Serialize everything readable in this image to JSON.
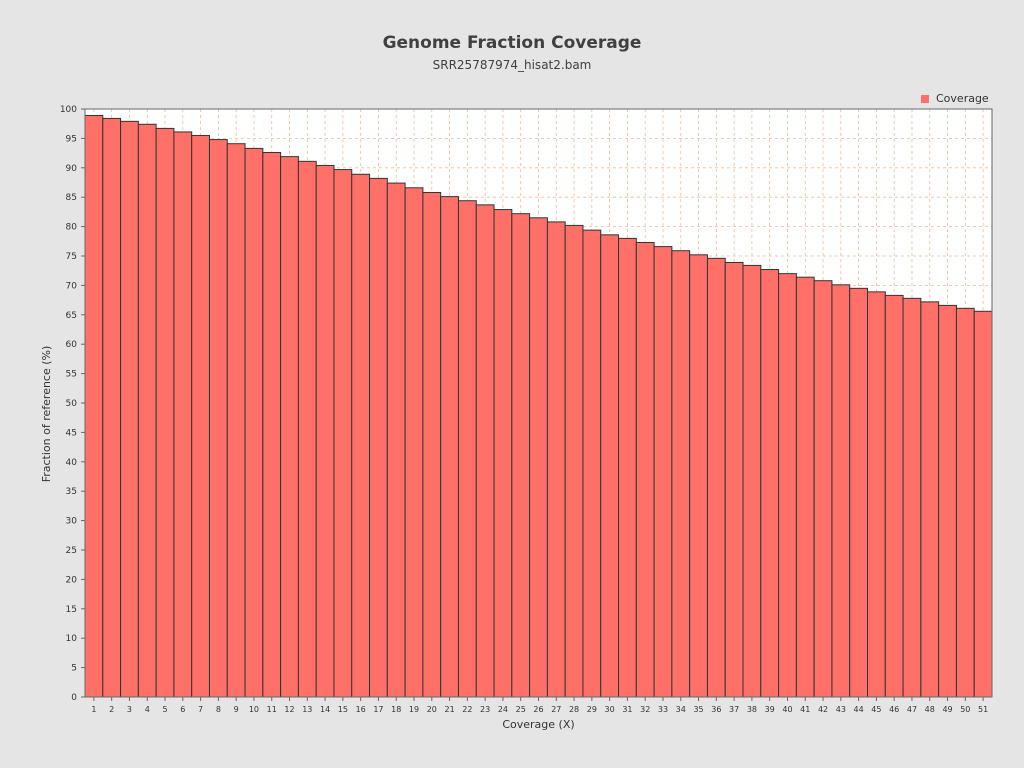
{
  "chart_data": {
    "type": "bar",
    "title": "Genome Fraction Coverage",
    "subtitle": "SRR25787974_hisat2.bam",
    "xlabel": "Coverage (X)",
    "ylabel": "Fraction of reference (%)",
    "ylim": [
      0,
      100
    ],
    "ytick_step": 5,
    "grid": true,
    "legend_position": "top-right",
    "categories": [
      1,
      2,
      3,
      4,
      5,
      6,
      7,
      8,
      9,
      10,
      11,
      12,
      13,
      14,
      15,
      16,
      17,
      18,
      19,
      20,
      21,
      22,
      23,
      24,
      25,
      26,
      27,
      28,
      29,
      30,
      31,
      32,
      33,
      34,
      35,
      36,
      37,
      38,
      39,
      40,
      41,
      42,
      43,
      44,
      45,
      46,
      47,
      48,
      49,
      50,
      51
    ],
    "series": [
      {
        "name": "Coverage",
        "color": "#ff7069",
        "values": [
          98.9,
          98.4,
          97.9,
          97.4,
          96.7,
          96.1,
          95.5,
          94.8,
          94.1,
          93.3,
          92.6,
          91.9,
          91.1,
          90.4,
          89.7,
          88.9,
          88.2,
          87.4,
          86.6,
          85.8,
          85.1,
          84.4,
          83.7,
          82.9,
          82.2,
          81.5,
          80.8,
          80.2,
          79.4,
          78.6,
          78.0,
          77.3,
          76.6,
          75.9,
          75.2,
          74.6,
          73.9,
          73.4,
          72.7,
          72.0,
          71.4,
          70.8,
          70.1,
          69.5,
          68.9,
          68.3,
          67.8,
          67.2,
          66.6,
          66.1,
          65.6
        ]
      }
    ]
  }
}
